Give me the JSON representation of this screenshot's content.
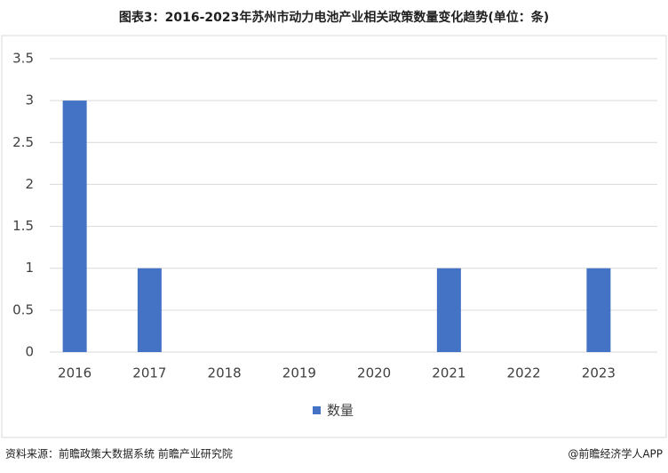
{
  "chart_data": {
    "type": "bar",
    "title": "图表3：2016-2023年苏州市动力电池产业相关政策数量变化趋势(单位：条)",
    "categories": [
      "2016",
      "2017",
      "2018",
      "2019",
      "2020",
      "2021",
      "2022",
      "2023"
    ],
    "series": [
      {
        "name": "数量",
        "color": "#4472c4",
        "values": [
          3,
          1,
          0,
          0,
          0,
          1,
          0,
          1
        ]
      }
    ],
    "ylim": [
      0,
      3.5
    ],
    "yticks": [
      0,
      0.5,
      1,
      1.5,
      2,
      2.5,
      3,
      3.5
    ],
    "grid": true,
    "legend": "bottom",
    "source": "资料来源：前瞻政策大数据系统 前瞻产业研究院",
    "credit": "@前瞻经济学人APP"
  }
}
